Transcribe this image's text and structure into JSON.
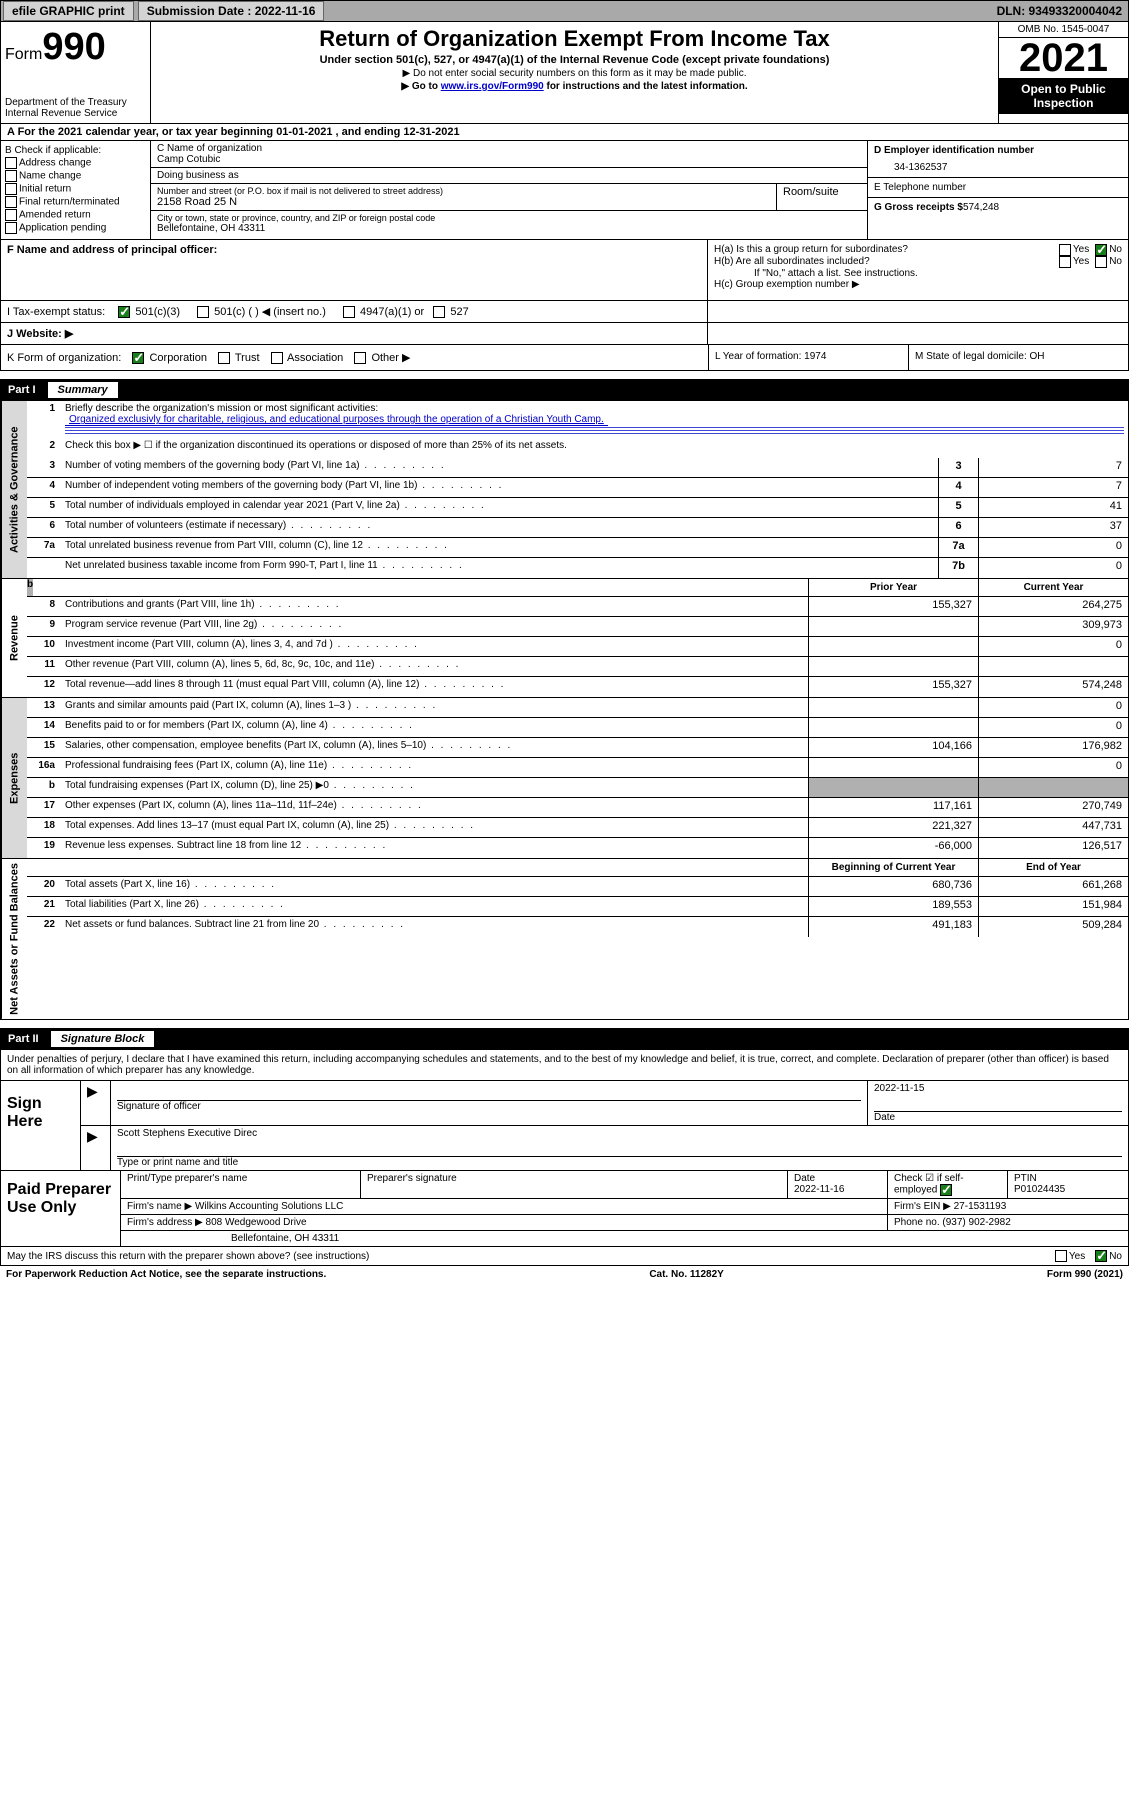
{
  "topbar": {
    "efile": "efile GRAPHIC print",
    "submission_label": "Submission Date : 2022-11-16",
    "dln": "DLN: 93493320004042"
  },
  "header": {
    "form_prefix": "Form",
    "form_number": "990",
    "dept": "Department of the Treasury",
    "irs": "Internal Revenue Service",
    "title": "Return of Organization Exempt From Income Tax",
    "subtitle": "Under section 501(c), 527, or 4947(a)(1) of the Internal Revenue Code (except private foundations)",
    "note1": "▶ Do not enter social security numbers on this form as it may be made public.",
    "note2_pre": "▶ Go to ",
    "note2_link": "www.irs.gov/Form990",
    "note2_post": " for instructions and the latest information.",
    "omb": "OMB No. 1545-0047",
    "year": "2021",
    "inspection": "Open to Public Inspection"
  },
  "row_a": {
    "label": "A For the 2021 calendar year, or tax year beginning 01-01-2021    , and ending 12-31-2021"
  },
  "col_b": {
    "heading": "B Check if applicable:",
    "opts": [
      "Address change",
      "Name change",
      "Initial return",
      "Final return/terminated",
      "Amended return",
      "Application pending"
    ]
  },
  "col_c": {
    "name_label": "C Name of organization",
    "name": "Camp Cotubic",
    "dba_label": "Doing business as",
    "dba": "",
    "addr_label": "Number and street (or P.O. box if mail is not delivered to street address)",
    "addr": "2158 Road 25 N",
    "room_label": "Room/suite",
    "city_label": "City or town, state or province, country, and ZIP or foreign postal code",
    "city": "Bellefontaine, OH  43311"
  },
  "col_d": {
    "d_label": "D Employer identification number",
    "d_val": "34-1362537",
    "e_label": "E Telephone number",
    "e_val": "",
    "g_label": "G Gross receipts $",
    "g_val": "574,248"
  },
  "row_f": {
    "f_label": "F Name and address of principal officer:",
    "ha": "H(a)  Is this a group return for subordinates?",
    "hb": "H(b)  Are all subordinates included?",
    "hb_note": "If \"No,\" attach a list. See instructions.",
    "hc": "H(c)  Group exemption number ▶",
    "yes": "Yes",
    "no": "No"
  },
  "row_i": {
    "label": "I   Tax-exempt status:",
    "opt1": "501(c)(3)",
    "opt2": "501(c) (  ) ◀ (insert no.)",
    "opt3": "4947(a)(1) or",
    "opt4": "527"
  },
  "row_j": {
    "label": "J   Website: ▶"
  },
  "row_k": {
    "label": "K Form of organization:",
    "corp": "Corporation",
    "trust": "Trust",
    "assoc": "Association",
    "other": "Other ▶"
  },
  "row_l": {
    "label": "L Year of formation: 1974"
  },
  "row_m": {
    "label": "M State of legal domicile: OH"
  },
  "parts": {
    "p1": "Part I",
    "p1t": "Summary",
    "p2": "Part II",
    "p2t": "Signature Block"
  },
  "summary": {
    "q1": "Briefly describe the organization's mission or most significant activities:",
    "mission": "Organized exclusivly for charitable, religious, and educational purposes through the operation of a Christian Youth Camp.",
    "q2": "Check this box ▶ ☐  if the organization discontinued its operations or disposed of more than 25% of its net assets.",
    "lines_gov": [
      {
        "n": "3",
        "d": "Number of voting members of the governing body (Part VI, line 1a)",
        "box": "3",
        "v": "7"
      },
      {
        "n": "4",
        "d": "Number of independent voting members of the governing body (Part VI, line 1b)",
        "box": "4",
        "v": "7"
      },
      {
        "n": "5",
        "d": "Total number of individuals employed in calendar year 2021 (Part V, line 2a)",
        "box": "5",
        "v": "41"
      },
      {
        "n": "6",
        "d": "Total number of volunteers (estimate if necessary)",
        "box": "6",
        "v": "37"
      },
      {
        "n": "7a",
        "d": "Total unrelated business revenue from Part VIII, column (C), line 12",
        "box": "7a",
        "v": "0"
      },
      {
        "n": "",
        "d": "Net unrelated business taxable income from Form 990-T, Part I, line 11",
        "box": "7b",
        "v": "0"
      }
    ],
    "head_prior": "Prior Year",
    "head_current": "Current Year",
    "lines_rev": [
      {
        "n": "8",
        "d": "Contributions and grants (Part VIII, line 1h)",
        "p": "155,327",
        "c": "264,275"
      },
      {
        "n": "9",
        "d": "Program service revenue (Part VIII, line 2g)",
        "p": "",
        "c": "309,973"
      },
      {
        "n": "10",
        "d": "Investment income (Part VIII, column (A), lines 3, 4, and 7d )",
        "p": "",
        "c": "0"
      },
      {
        "n": "11",
        "d": "Other revenue (Part VIII, column (A), lines 5, 6d, 8c, 9c, 10c, and 11e)",
        "p": "",
        "c": ""
      },
      {
        "n": "12",
        "d": "Total revenue—add lines 8 through 11 (must equal Part VIII, column (A), line 12)",
        "p": "155,327",
        "c": "574,248"
      }
    ],
    "lines_exp": [
      {
        "n": "13",
        "d": "Grants and similar amounts paid (Part IX, column (A), lines 1–3 )",
        "p": "",
        "c": "0"
      },
      {
        "n": "14",
        "d": "Benefits paid to or for members (Part IX, column (A), line 4)",
        "p": "",
        "c": "0"
      },
      {
        "n": "15",
        "d": "Salaries, other compensation, employee benefits (Part IX, column (A), lines 5–10)",
        "p": "104,166",
        "c": "176,982"
      },
      {
        "n": "16a",
        "d": "Professional fundraising fees (Part IX, column (A), line 11e)",
        "p": "",
        "c": "0"
      },
      {
        "n": "b",
        "d": "Total fundraising expenses (Part IX, column (D), line 25) ▶0",
        "p": "shade",
        "c": "shade"
      },
      {
        "n": "17",
        "d": "Other expenses (Part IX, column (A), lines 11a–11d, 11f–24e)",
        "p": "117,161",
        "c": "270,749"
      },
      {
        "n": "18",
        "d": "Total expenses. Add lines 13–17 (must equal Part IX, column (A), line 25)",
        "p": "221,327",
        "c": "447,731"
      },
      {
        "n": "19",
        "d": "Revenue less expenses. Subtract line 18 from line 12",
        "p": "-66,000",
        "c": "126,517"
      }
    ],
    "head_begin": "Beginning of Current Year",
    "head_end": "End of Year",
    "lines_net": [
      {
        "n": "20",
        "d": "Total assets (Part X, line 16)",
        "p": "680,736",
        "c": "661,268"
      },
      {
        "n": "21",
        "d": "Total liabilities (Part X, line 26)",
        "p": "189,553",
        "c": "151,984"
      },
      {
        "n": "22",
        "d": "Net assets or fund balances. Subtract line 21 from line 20",
        "p": "491,183",
        "c": "509,284"
      }
    ],
    "side_labels": {
      "gov": "Activities & Governance",
      "rev": "Revenue",
      "exp": "Expenses",
      "net": "Net Assets or Fund Balances"
    }
  },
  "sig": {
    "penalty": "Under penalties of perjury, I declare that I have examined this return, including accompanying schedules and statements, and to the best of my knowledge and belief, it is true, correct, and complete. Declaration of preparer (other than officer) is based on all information of which preparer has any knowledge.",
    "sign_here": "Sign Here",
    "sig_officer": "Signature of officer",
    "date_label": "Date",
    "date_val": "2022-11-15",
    "name": "Scott Stephens  Executive Direc",
    "name_label": "Type or print name and title"
  },
  "paid": {
    "title": "Paid Preparer Use Only",
    "h_name": "Print/Type preparer's name",
    "h_sig": "Preparer's signature",
    "h_date": "Date",
    "date_val": "2022-11-16",
    "check_label": "Check ☑ if self-employed",
    "ptin_label": "PTIN",
    "ptin": "P01024435",
    "firm_name_label": "Firm's name    ▶",
    "firm_name": "Wilkins Accounting Solutions LLC",
    "firm_ein_label": "Firm's EIN ▶",
    "firm_ein": "27-1531193",
    "firm_addr_label": "Firm's address ▶",
    "firm_addr1": "808 Wedgewood Drive",
    "firm_addr2": "Bellefontaine, OH  43311",
    "phone_label": "Phone no.",
    "phone": "(937) 902-2982"
  },
  "discuss": {
    "q": "May the IRS discuss this return with the preparer shown above? (see instructions)",
    "yes": "Yes",
    "no": "No"
  },
  "footer": {
    "left": "For Paperwork Reduction Act Notice, see the separate instructions.",
    "mid": "Cat. No. 11282Y",
    "right": "Form 990 (2021)"
  }
}
